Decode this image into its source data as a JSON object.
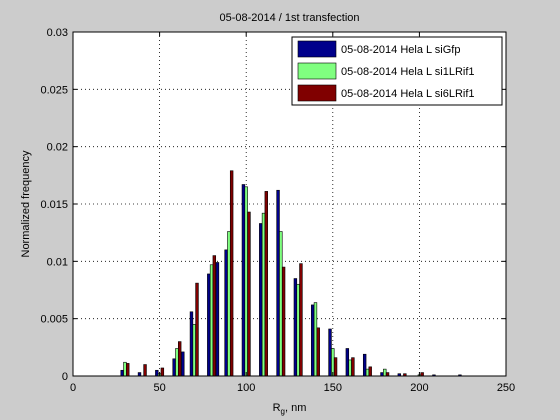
{
  "chart_data": {
    "type": "bar",
    "title": "05-08-2014 / 1st transfection",
    "xlabel_main": "R",
    "xlabel_sub": "g",
    "xlabel_rest": ", nm",
    "ylabel": "Normalized frequency",
    "xlim": [
      0,
      250
    ],
    "ylim": [
      0,
      0.03
    ],
    "x_ticks": [
      "0",
      "50",
      "100",
      "150",
      "200",
      "250"
    ],
    "y_ticks": [
      "0",
      "0.005",
      "0.01",
      "0.015",
      "0.02",
      "0.025",
      "0.03"
    ],
    "grid": true,
    "legend_position": "top-right",
    "bin_centers": [
      30,
      40,
      50,
      60,
      65,
      70,
      75,
      80,
      85,
      90,
      95,
      100,
      105,
      110,
      115,
      120,
      125,
      130,
      135,
      140,
      145,
      150,
      160,
      170,
      180,
      190,
      200,
      210,
      225
    ],
    "series": [
      {
        "name": "05-08-2014 Hela L siGfp",
        "color": "#00008b",
        "values": [
          0.0005,
          0.0003,
          0.0005,
          0.0015,
          0.0021,
          0.0056,
          0.0,
          0.0089,
          0.0099,
          0.011,
          0.0,
          0.0167,
          0.0,
          0.0133,
          0.0,
          0.0162,
          0.0,
          0.0085,
          0.0,
          0.0062,
          0.0,
          0.0041,
          0.0024,
          0.0019,
          0.0003,
          0.0002,
          0.0,
          0.0001,
          0.0001
        ]
      },
      {
        "name": "05-08-2014 Hela L si1LRif1",
        "color": "#80ff80",
        "values": [
          0.0012,
          0.0,
          0.0002,
          0.0024,
          0.0,
          0.0045,
          0.0,
          0.0097,
          0.0,
          0.0126,
          0.0,
          0.0165,
          0.0,
          0.0142,
          0.0,
          0.0126,
          0.0,
          0.008,
          0.0,
          0.0064,
          0.0,
          0.0024,
          0.0014,
          0.0006,
          0.0006,
          0.0,
          0.0001,
          0.0,
          0.0
        ]
      },
      {
        "name": "05-08-2014 Hela L si6LRif1",
        "color": "#800000",
        "values": [
          0.0011,
          0.001,
          0.0007,
          0.003,
          0.0,
          0.0081,
          0.0,
          0.0105,
          0.0,
          0.0179,
          0.0,
          0.0143,
          0.0,
          0.0161,
          0.0,
          0.0095,
          0.0,
          0.0098,
          0.0,
          0.0042,
          0.0,
          0.0016,
          0.0016,
          0.0008,
          0.0003,
          0.0002,
          0.0003,
          0.0,
          0.0
        ]
      }
    ]
  }
}
